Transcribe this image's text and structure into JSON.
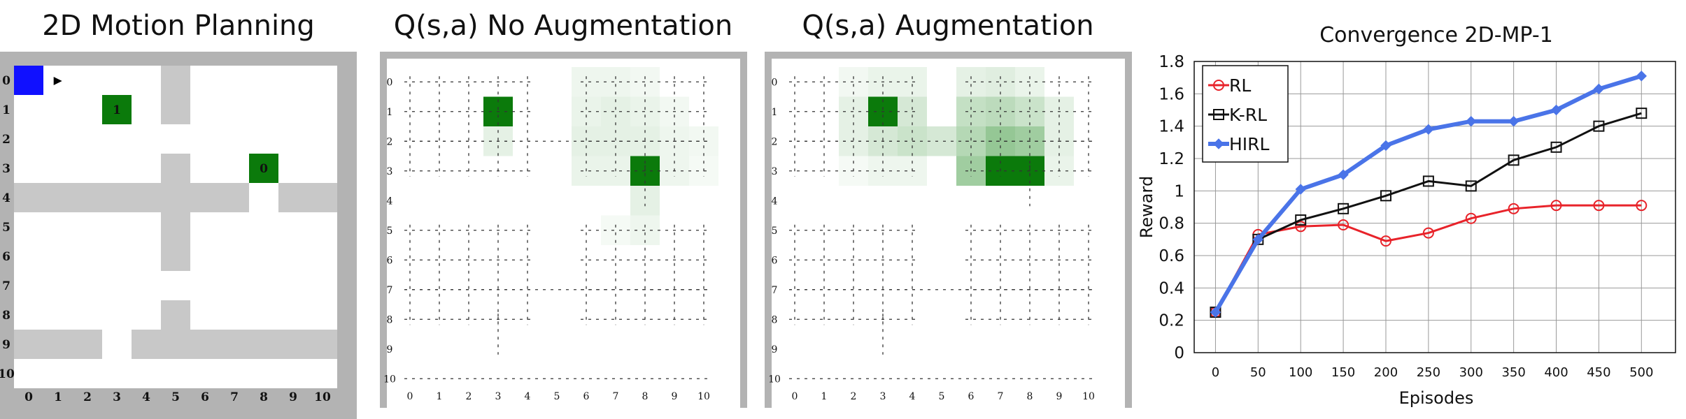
{
  "panels": [
    {
      "title": "2D Motion Planning"
    },
    {
      "title": "Q(s,a) No Augmentation"
    },
    {
      "title": "Q(s,a) Augmentation"
    }
  ],
  "grid_ticks": [
    "0",
    "1",
    "2",
    "3",
    "4",
    "5",
    "6",
    "7",
    "8",
    "9",
    "10"
  ],
  "motion": {
    "agent_cell": [
      0,
      0
    ],
    "goals": [
      {
        "col": 3,
        "row": 1,
        "label": "1"
      },
      {
        "col": 8,
        "row": 3,
        "label": "0"
      }
    ],
    "walls": [
      [
        5,
        0
      ],
      [
        5,
        1
      ],
      [
        5,
        3
      ],
      [
        0,
        4
      ],
      [
        1,
        4
      ],
      [
        2,
        4
      ],
      [
        3,
        4
      ],
      [
        4,
        4
      ],
      [
        5,
        4
      ],
      [
        6,
        4
      ],
      [
        7,
        4
      ],
      [
        9,
        4
      ],
      [
        10,
        4
      ],
      [
        5,
        5
      ],
      [
        5,
        6
      ],
      [
        5,
        8
      ],
      [
        0,
        9
      ],
      [
        1,
        9
      ],
      [
        2,
        9
      ],
      [
        4,
        9
      ],
      [
        5,
        9
      ],
      [
        6,
        9
      ],
      [
        7,
        9
      ],
      [
        8,
        9
      ],
      [
        9,
        9
      ],
      [
        10,
        9
      ]
    ]
  },
  "qmaps": [
    {
      "value_cells": [
        [
          3,
          1,
          1.0
        ],
        [
          8,
          3,
          1.0
        ],
        [
          3,
          2,
          0.12
        ],
        [
          6,
          0,
          0.08
        ],
        [
          7,
          0,
          0.08
        ],
        [
          8,
          0,
          0.06
        ],
        [
          6,
          1,
          0.1
        ],
        [
          7,
          1,
          0.12
        ],
        [
          8,
          1,
          0.1
        ],
        [
          9,
          1,
          0.06
        ],
        [
          6,
          2,
          0.12
        ],
        [
          7,
          2,
          0.12
        ],
        [
          8,
          2,
          0.12
        ],
        [
          9,
          2,
          0.08
        ],
        [
          10,
          2,
          0.06
        ],
        [
          6,
          3,
          0.1
        ],
        [
          7,
          3,
          0.1
        ],
        [
          9,
          3,
          0.08
        ],
        [
          10,
          3,
          0.05
        ],
        [
          8,
          4,
          0.12
        ],
        [
          8,
          5,
          0.08
        ],
        [
          7,
          5,
          0.05
        ]
      ],
      "dots": {
        "top": [
          0,
          1,
          2,
          3
        ],
        "mid": [
          5,
          6,
          7,
          8
        ],
        "bottom": [
          10
        ],
        "stems": [
          [
            3,
            9
          ],
          [
            8,
            4
          ]
        ]
      }
    },
    {
      "value_cells": [
        [
          3,
          1,
          1.0
        ],
        [
          7,
          3,
          1.0
        ],
        [
          8,
          3,
          1.0
        ],
        [
          2,
          1,
          0.12
        ],
        [
          4,
          1,
          0.2
        ],
        [
          4,
          0,
          0.1
        ],
        [
          3,
          0,
          0.1
        ],
        [
          2,
          0,
          0.06
        ],
        [
          2,
          2,
          0.12
        ],
        [
          3,
          2,
          0.2
        ],
        [
          4,
          2,
          0.25
        ],
        [
          5,
          2,
          0.2
        ],
        [
          6,
          1,
          0.28
        ],
        [
          7,
          1,
          0.32
        ],
        [
          8,
          1,
          0.25
        ],
        [
          9,
          1,
          0.12
        ],
        [
          6,
          2,
          0.35
        ],
        [
          7,
          2,
          0.5
        ],
        [
          8,
          2,
          0.45
        ],
        [
          9,
          2,
          0.12
        ],
        [
          6,
          3,
          0.45
        ],
        [
          9,
          3,
          0.1
        ],
        [
          6,
          0,
          0.12
        ],
        [
          7,
          0,
          0.15
        ],
        [
          8,
          0,
          0.1
        ],
        [
          3,
          3,
          0.08
        ],
        [
          4,
          3,
          0.08
        ],
        [
          2,
          3,
          0.05
        ]
      ],
      "dots": {
        "top": [
          0,
          1,
          2,
          3
        ],
        "mid": [
          5,
          6,
          7,
          8
        ],
        "bottom": [
          10
        ],
        "stems": [
          [
            3,
            9
          ],
          [
            8,
            4
          ]
        ]
      }
    }
  ],
  "chart_data": {
    "type": "line",
    "title": "Convergence 2D-MP-1",
    "xlabel": "Episodes",
    "ylabel": "Reward",
    "x": [
      0,
      50,
      100,
      150,
      200,
      250,
      300,
      350,
      400,
      450,
      500
    ],
    "xlim": [
      -25,
      540
    ],
    "ylim": [
      0,
      1.8
    ],
    "yticks": [
      "0",
      "0.2",
      "0.4",
      "0.6",
      "0.8",
      "1",
      "1.2",
      "1.4",
      "1.6",
      "1.8"
    ],
    "xticks": [
      "0",
      "50",
      "100",
      "150",
      "200",
      "250",
      "300",
      "350",
      "400",
      "450",
      "500"
    ],
    "grid": true,
    "legend_position": "top-left",
    "series": [
      {
        "name": "RL",
        "color": "#e8232a",
        "marker": "circle",
        "values": [
          0.25,
          0.73,
          0.78,
          0.79,
          0.69,
          0.74,
          0.83,
          0.89,
          0.91,
          0.91,
          0.91
        ]
      },
      {
        "name": "K-RL",
        "color": "#111111",
        "marker": "square",
        "values": [
          0.25,
          0.7,
          0.82,
          0.89,
          0.97,
          1.06,
          1.03,
          1.19,
          1.27,
          1.4,
          1.48
        ]
      },
      {
        "name": "HIRL",
        "color": "#4a74e8",
        "marker": "diamond",
        "values": [
          0.25,
          0.7,
          1.01,
          1.1,
          1.28,
          1.38,
          1.43,
          1.43,
          1.5,
          1.63,
          1.71
        ]
      }
    ]
  }
}
